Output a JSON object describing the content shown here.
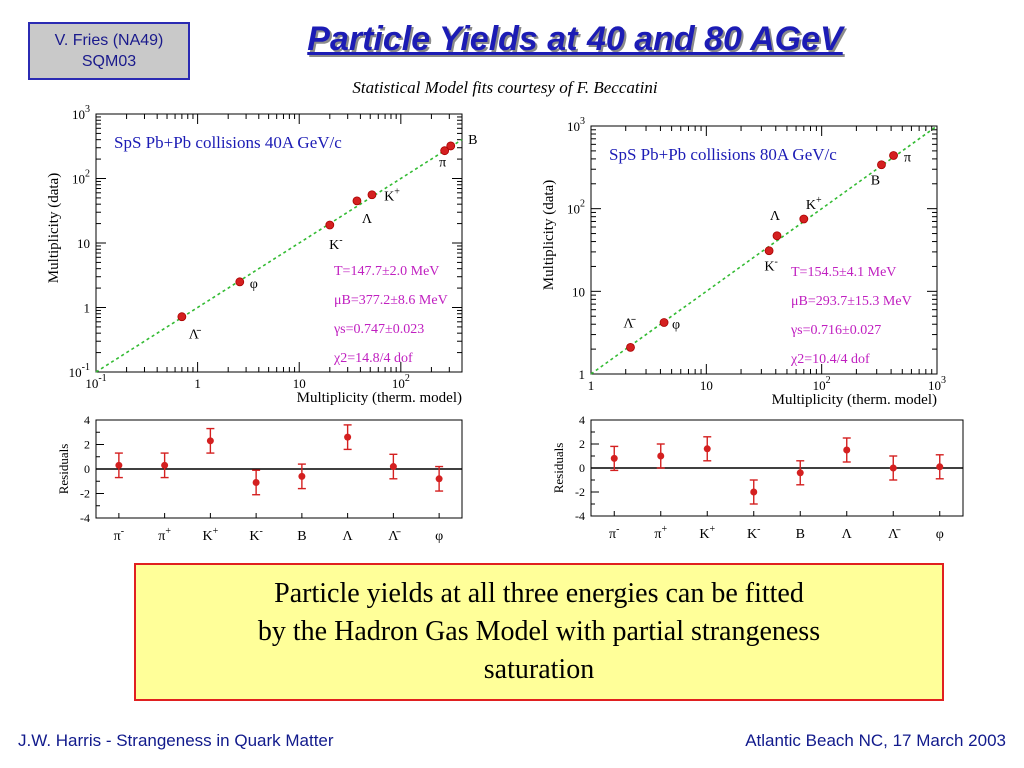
{
  "header": {
    "badge_line1": "V. Fries (NA49)",
    "badge_line2": "SQM03",
    "title": "Particle Yields at 40 and 80 AGeV",
    "subtitle": "Statistical Model fits courtesy of F. Beccatini"
  },
  "summary": {
    "line1": "Particle yields at all three energies can be fitted",
    "line2": "by the Hadron Gas Model with partial strangeness",
    "line3": "saturation"
  },
  "footer": {
    "left": "J.W. Harris - Strangeness in Quark Matter",
    "right": "Atlantic Beach NC, 17 March 2003"
  },
  "colors": {
    "points": "#d42020",
    "fit_line": "#33bb33",
    "params": "#c020c0",
    "panel_title": "#1c1cb5",
    "title": "#1c1cb5",
    "border": "#e02020"
  },
  "chart_data": [
    {
      "type": "scatter",
      "title": "SpS Pb+Pb collisions 40A GeV/c",
      "xlabel": "Multiplicity (therm. model)",
      "ylabel": "Multiplicity (data)",
      "x_scale": "log",
      "y_scale": "log",
      "xlim": [
        0.1,
        400
      ],
      "ylim": [
        0.1,
        1000
      ],
      "xticks": [
        "10^-1",
        "1",
        "10",
        "10^2"
      ],
      "yticks": [
        "10^-1",
        "1",
        "10",
        "10^2",
        "10^3"
      ],
      "fit_line": "y = x",
      "points": [
        {
          "label": "π",
          "x": 270,
          "y": 270
        },
        {
          "label": "B",
          "x": 310,
          "y": 320
        },
        {
          "label": "K+",
          "x": 52,
          "y": 56
        },
        {
          "label": "Λ",
          "x": 37,
          "y": 45
        },
        {
          "label": "K-",
          "x": 20,
          "y": 19
        },
        {
          "label": "φ",
          "x": 2.6,
          "y": 2.5
        },
        {
          "label": "Λ̄",
          "x": 0.7,
          "y": 0.72
        }
      ],
      "params": [
        "T=147.7±2.0 MeV",
        "μB=377.2±8.6 MeV",
        "γs=0.747±0.023",
        "χ2=14.8/4 dof"
      ]
    },
    {
      "type": "scatter",
      "title": "SpS Pb+Pb collisions 80A GeV/c",
      "xlabel": "Multiplicity (therm. model)",
      "ylabel": "Multiplicity (data)",
      "x_scale": "log",
      "y_scale": "log",
      "xlim": [
        1,
        1000
      ],
      "ylim": [
        1,
        1000
      ],
      "xticks": [
        "1",
        "10",
        "10^2",
        "10^3"
      ],
      "yticks": [
        "1",
        "10",
        "10^2",
        "10^3"
      ],
      "fit_line": "y = x",
      "points": [
        {
          "label": "B",
          "x": 330,
          "y": 340
        },
        {
          "label": "π",
          "x": 420,
          "y": 440
        },
        {
          "label": "K+",
          "x": 70,
          "y": 75
        },
        {
          "label": "Λ",
          "x": 41,
          "y": 47
        },
        {
          "label": "K-",
          "x": 35,
          "y": 31
        },
        {
          "label": "φ",
          "x": 4.3,
          "y": 4.2
        },
        {
          "label": "Λ̄",
          "x": 2.2,
          "y": 2.1
        }
      ],
      "params": [
        "T=154.5±4.1 MeV",
        "μB=293.7±15.3 MeV",
        "γs=0.716±0.027",
        "χ2=10.4/4 dof"
      ]
    },
    {
      "type": "scatter",
      "title": "",
      "ylabel": "Residuals",
      "ylim": [
        -4,
        4
      ],
      "yticks": [
        "4",
        "2",
        "0",
        "-2",
        "-4"
      ],
      "categories": [
        "π-",
        "π+",
        "K+",
        "K-",
        "B",
        "Λ",
        "Λ̄",
        "φ"
      ],
      "values": [
        0.3,
        0.3,
        2.3,
        -1.1,
        -0.6,
        2.6,
        0.2,
        -0.8
      ],
      "errors": [
        1,
        1,
        1,
        1,
        1,
        1,
        1,
        1
      ]
    },
    {
      "type": "scatter",
      "title": "",
      "ylabel": "Residuals",
      "ylim": [
        -4,
        4
      ],
      "yticks": [
        "4",
        "2",
        "0",
        "-2",
        "-4"
      ],
      "categories": [
        "π-",
        "π+",
        "K+",
        "K-",
        "B",
        "Λ",
        "Λ̄",
        "φ"
      ],
      "values": [
        0.8,
        1.0,
        1.6,
        -2.0,
        -0.4,
        1.5,
        0.0,
        0.1
      ],
      "errors": [
        1,
        1,
        1,
        1,
        1,
        1,
        1,
        1
      ]
    }
  ]
}
